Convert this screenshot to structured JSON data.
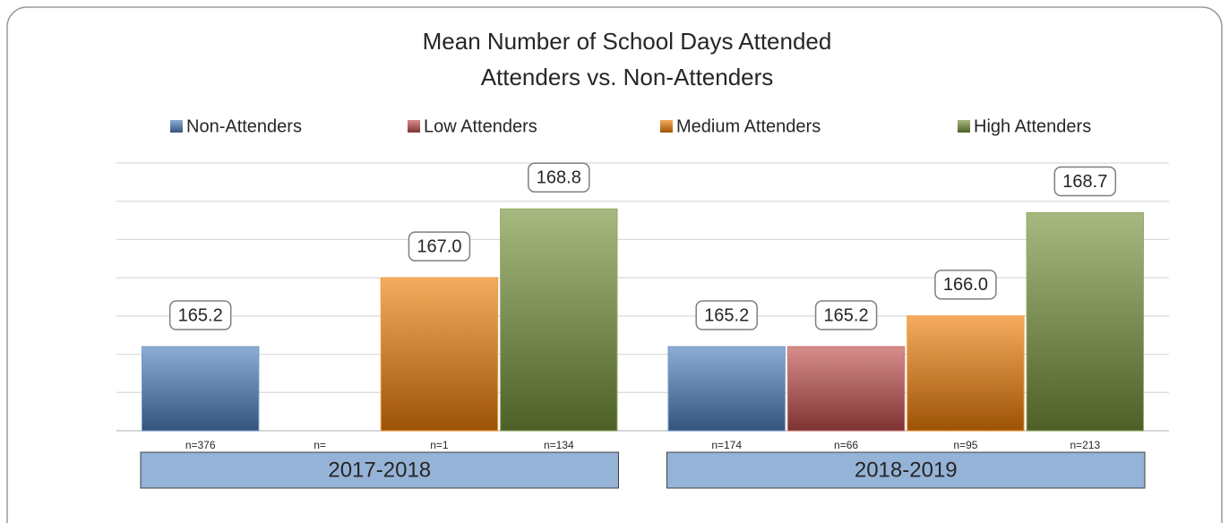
{
  "chart_data": {
    "type": "bar",
    "title": "Mean Number of School Days Attended",
    "subtitle": "Attenders vs. Non-Attenders",
    "categories": [
      "2017-2018",
      "2018-2019"
    ],
    "series": [
      {
        "name": "Non-Attenders",
        "color": "#4f81bd",
        "values": [
          165.2,
          165.2
        ],
        "value_labels": [
          "165.2",
          "165.2"
        ]
      },
      {
        "name": "Low Attenders",
        "color": "#c0504d",
        "values": [
          null,
          165.2
        ],
        "value_labels": [
          null,
          "165.2"
        ]
      },
      {
        "name": "Medium Attenders",
        "color": "#f07f09",
        "values": [
          167.0,
          166.0
        ],
        "value_labels": [
          "167.0",
          "166.0"
        ]
      },
      {
        "name": "High Attenders",
        "color": "#77933c",
        "values": [
          168.8,
          168.7
        ],
        "value_labels": [
          "168.8",
          "168.7"
        ]
      }
    ],
    "n_labels": [
      [
        "n=376",
        "n=",
        "n=1",
        "n=134"
      ],
      [
        "n=174",
        "n=66",
        "n=95",
        "n=213"
      ]
    ],
    "ylim": [
      163,
      170
    ],
    "yticks": [
      163,
      164,
      165,
      166,
      167,
      168,
      169,
      170
    ],
    "grid": true,
    "legend": "top"
  }
}
